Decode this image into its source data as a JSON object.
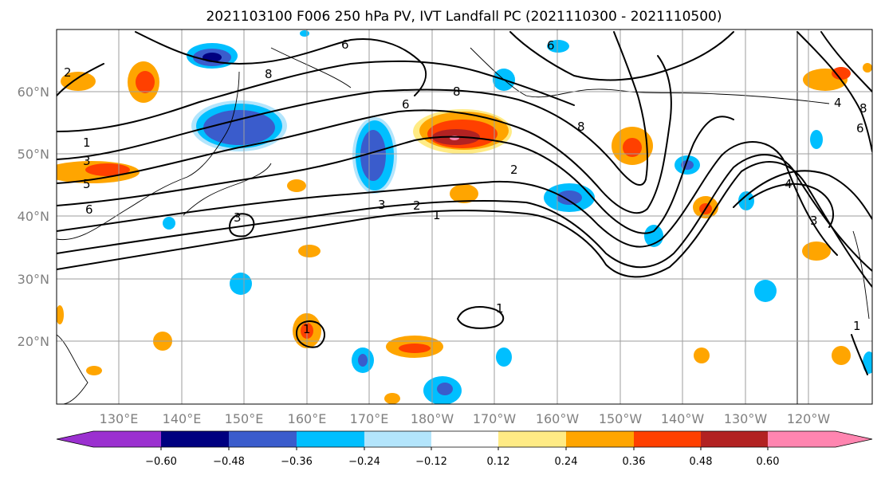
{
  "title": "2021103100 F006 250 hPa PV, IVT Landfall PC (2021110300 - 2021110500)",
  "map": {
    "lon_range": [
      120,
      -110
    ],
    "lat_range": [
      10,
      70
    ],
    "lat_ticks": [
      {
        "value": 20,
        "label": "20°N"
      },
      {
        "value": 30,
        "label": "30°N"
      },
      {
        "value": 40,
        "label": "40°N"
      },
      {
        "value": 50,
        "label": "50°N"
      },
      {
        "value": 60,
        "label": "60°N"
      }
    ],
    "lon_ticks": [
      {
        "value": 130,
        "label": "130°E"
      },
      {
        "value": 140,
        "label": "140°E"
      },
      {
        "value": 150,
        "label": "150°E"
      },
      {
        "value": 160,
        "label": "160°E"
      },
      {
        "value": 170,
        "label": "170°E"
      },
      {
        "value": 180,
        "label": "180°W"
      },
      {
        "value": 190,
        "label": "170°W"
      },
      {
        "value": 200,
        "label": "160°W"
      },
      {
        "value": 210,
        "label": "150°W"
      },
      {
        "value": 220,
        "label": "140°W"
      },
      {
        "value": 230,
        "label": "130°W"
      },
      {
        "value": 240,
        "label": "120°W"
      }
    ],
    "gridlines": true
  },
  "colorbar": {
    "colors": [
      "#9b30d0",
      "#000080",
      "#3a5ccc",
      "#00bfff",
      "#b3e5fc",
      "#ffffff",
      "#ffeb85",
      "#ffa500",
      "#ff4000",
      "#b22222",
      "#ff85b0"
    ],
    "tick_labels": [
      "−0.60",
      "−0.48",
      "−0.36",
      "−0.24",
      "−0.12",
      "0.12",
      "0.24",
      "0.36",
      "0.48",
      "0.60"
    ],
    "extend": "both"
  },
  "chart_data": {
    "type": "contour-map",
    "contour_levels": [
      "1",
      "2",
      "3",
      "4",
      "5",
      "6",
      "8"
    ],
    "shaded_variable_range": [
      -0.6,
      0.6
    ]
  }
}
